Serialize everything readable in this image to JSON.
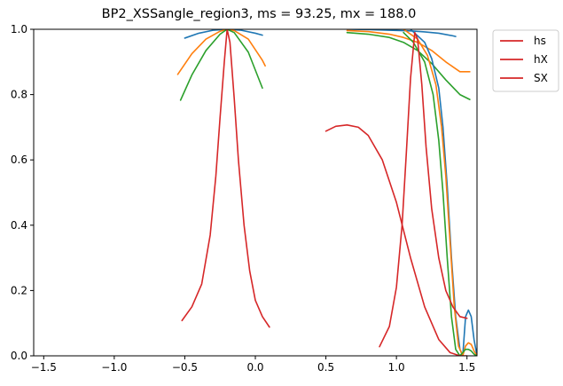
{
  "chart_data": {
    "type": "line",
    "title": "BP2_XSSangle_region3, ms = 93.25, mx = 188.0",
    "xlabel": "",
    "ylabel": "",
    "xlim": [
      -1.571,
      1.571
    ],
    "ylim": [
      0,
      1.0
    ],
    "xticks": [
      -1.5,
      -1.0,
      -0.5,
      0.0,
      0.5,
      1.0,
      1.5
    ],
    "xtick_labels": [
      "−1.5",
      "−1.0",
      "−0.5",
      "0.0",
      "0.5",
      "1.0",
      "1.5"
    ],
    "yticks": [
      0.0,
      0.2,
      0.4,
      0.6,
      0.8,
      1.0
    ],
    "ytick_labels": [
      "0.0",
      "0.2",
      "0.4",
      "0.6",
      "0.8",
      "1.0"
    ],
    "grid": false,
    "legend": {
      "placement": "outside-top-right",
      "entries": [
        {
          "label": "hs",
          "color": "#d62728"
        },
        {
          "label": "hX",
          "color": "#d62728"
        },
        {
          "label": "SX",
          "color": "#d62728"
        }
      ]
    },
    "series": [
      {
        "color": "#1f77b4",
        "x": [
          -0.5,
          -0.4,
          -0.3,
          -0.2,
          -0.1,
          0.0,
          0.05
        ],
        "y": [
          0.973,
          0.988,
          0.997,
          1.0,
          0.997,
          0.988,
          0.982
        ]
      },
      {
        "color": "#ff7f0e",
        "x": [
          -0.55,
          -0.45,
          -0.35,
          -0.25,
          -0.2,
          -0.15,
          -0.05,
          0.05,
          0.07
        ],
        "y": [
          0.862,
          0.925,
          0.97,
          0.994,
          1.0,
          0.996,
          0.97,
          0.905,
          0.888
        ]
      },
      {
        "color": "#2ca02c",
        "x": [
          -0.53,
          -0.45,
          -0.35,
          -0.25,
          -0.2,
          -0.15,
          -0.05,
          0.05
        ],
        "y": [
          0.783,
          0.86,
          0.935,
          0.985,
          1.0,
          0.99,
          0.93,
          0.82
        ]
      },
      {
        "color": "#d62728",
        "x": [
          -0.52,
          -0.45,
          -0.38,
          -0.32,
          -0.28,
          -0.25,
          -0.22,
          -0.2,
          -0.18,
          -0.15,
          -0.12,
          -0.08,
          -0.04,
          0.0,
          0.05,
          0.1
        ],
        "y": [
          0.108,
          0.15,
          0.22,
          0.37,
          0.55,
          0.73,
          0.9,
          1.0,
          0.96,
          0.79,
          0.6,
          0.4,
          0.26,
          0.17,
          0.12,
          0.088
        ]
      },
      {
        "color": "#1f77b4",
        "x": [
          0.65,
          0.8,
          0.95,
          1.1,
          1.2,
          1.3,
          1.4,
          1.42
        ],
        "y": [
          1.0,
          0.999,
          0.997,
          0.995,
          0.992,
          0.988,
          0.98,
          0.978
        ]
      },
      {
        "color": "#ff7f0e",
        "x": [
          0.65,
          0.8,
          0.95,
          1.05,
          1.15,
          1.25,
          1.35,
          1.45,
          1.52
        ],
        "y": [
          0.996,
          0.993,
          0.985,
          0.975,
          0.96,
          0.935,
          0.9,
          0.87,
          0.87
        ]
      },
      {
        "color": "#2ca02c",
        "x": [
          0.65,
          0.8,
          0.95,
          1.05,
          1.15,
          1.25,
          1.35,
          1.45,
          1.52
        ],
        "y": [
          0.99,
          0.985,
          0.975,
          0.96,
          0.935,
          0.895,
          0.845,
          0.8,
          0.785
        ]
      },
      {
        "color": "#1f77b4",
        "x": [
          1.1,
          1.2,
          1.25,
          1.3,
          1.33,
          1.36,
          1.39,
          1.42,
          1.45,
          1.47,
          1.49,
          1.51,
          1.53,
          1.55,
          1.571
        ],
        "y": [
          1.0,
          0.96,
          0.91,
          0.82,
          0.7,
          0.52,
          0.3,
          0.12,
          0.02,
          0.0,
          0.12,
          0.14,
          0.12,
          0.05,
          0.0
        ]
      },
      {
        "color": "#ff7f0e",
        "x": [
          1.05,
          1.15,
          1.22,
          1.28,
          1.32,
          1.35,
          1.38,
          1.41,
          1.44,
          1.47,
          1.49,
          1.51,
          1.53,
          1.55,
          1.571
        ],
        "y": [
          1.0,
          0.97,
          0.92,
          0.83,
          0.7,
          0.55,
          0.35,
          0.15,
          0.03,
          0.0,
          0.03,
          0.04,
          0.035,
          0.015,
          0.0
        ]
      },
      {
        "color": "#2ca02c",
        "x": [
          1.05,
          1.12,
          1.2,
          1.26,
          1.3,
          1.33,
          1.36,
          1.39,
          1.42,
          1.45,
          1.47,
          1.49,
          1.51,
          1.53,
          1.55,
          1.571
        ],
        "y": [
          0.99,
          0.96,
          0.9,
          0.8,
          0.66,
          0.5,
          0.3,
          0.12,
          0.02,
          0.0,
          0.01,
          0.02,
          0.02,
          0.015,
          0.005,
          0.0
        ]
      },
      {
        "color": "#d62728",
        "x": [
          0.5,
          0.57,
          0.65,
          0.73,
          0.8,
          0.9,
          1.0,
          1.1,
          1.2,
          1.3,
          1.38,
          1.45,
          1.5
        ],
        "y": [
          0.688,
          0.703,
          0.707,
          0.7,
          0.675,
          0.6,
          0.47,
          0.3,
          0.15,
          0.05,
          0.01,
          0.0,
          0.0
        ]
      },
      {
        "color": "#d62728",
        "x": [
          0.88,
          0.95,
          1.0,
          1.04,
          1.07,
          1.1,
          1.13,
          1.15,
          1.18,
          1.21,
          1.25,
          1.3,
          1.35,
          1.4,
          1.45,
          1.5
        ],
        "y": [
          0.028,
          0.09,
          0.21,
          0.4,
          0.62,
          0.85,
          0.99,
          0.97,
          0.83,
          0.64,
          0.45,
          0.3,
          0.2,
          0.15,
          0.12,
          0.115
        ]
      }
    ]
  }
}
